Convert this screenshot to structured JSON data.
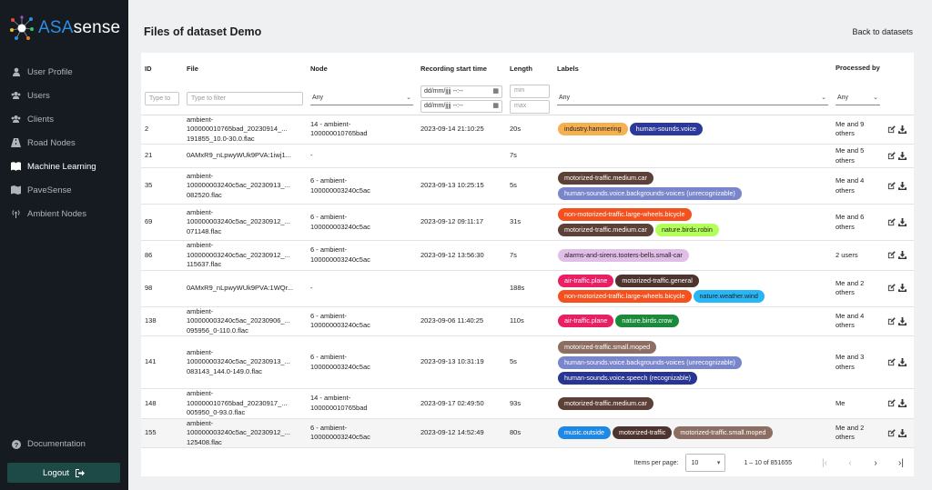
{
  "brand": {
    "name_a": "ASA",
    "name_b": "sense"
  },
  "sidebar": {
    "items": [
      {
        "label": "User Profile",
        "icon": "user-icon",
        "active": false
      },
      {
        "label": "Users",
        "icon": "users-icon",
        "active": false
      },
      {
        "label": "Clients",
        "icon": "clients-icon",
        "active": false
      },
      {
        "label": "Road Nodes",
        "icon": "road-icon",
        "active": false
      },
      {
        "label": "Machine Learning",
        "icon": "book-icon",
        "active": true
      },
      {
        "label": "PaveSense",
        "icon": "map-icon",
        "active": false
      },
      {
        "label": "Ambient Nodes",
        "icon": "broadcast-icon",
        "active": false
      }
    ],
    "documentation": "Documentation",
    "logout": "Logout"
  },
  "page": {
    "title": "Files of dataset Demo",
    "back": "Back to datasets"
  },
  "table": {
    "headers": {
      "id": "ID",
      "file": "File",
      "node": "Node",
      "start": "Recording start time",
      "length": "Length",
      "labels": "Labels",
      "processed": "Processed by"
    },
    "filters": {
      "id_placeholder": "Type to",
      "file_placeholder": "Type to filter",
      "node_value": "Any",
      "date_from": "dd/mm/jjjj --:--",
      "date_to": "dd/mm/jjjj --:--",
      "min_placeholder": "min",
      "max_placeholder": "max",
      "labels_value": "Any",
      "processed_value": "Any"
    },
    "rows": [
      {
        "id": "2",
        "file": [
          "ambient-",
          "100000010765bad_20230914_...",
          "191855_10.0-30.0.flac"
        ],
        "node": [
          "14 - ambient-",
          "100000010765bad"
        ],
        "start": "2023-09-14 21:10:25",
        "length": "20s",
        "labels": [
          [
            {
              "t": "industry.hammering",
              "c": "#f5b04f",
              "f": "#222"
            },
            {
              "t": "human-sounds.voice",
              "c": "#2b3a9a",
              "f": "#fff"
            }
          ]
        ],
        "processed": [
          "Me and 9",
          "others"
        ]
      },
      {
        "id": "21",
        "file": [
          "0AMxR9_nLpwyWUk9PVA:1iwj1..."
        ],
        "node": [
          "-"
        ],
        "start": "",
        "length": "7s",
        "labels": [],
        "processed": [
          "Me and 5",
          "others"
        ]
      },
      {
        "id": "35",
        "file": [
          "ambient-",
          "100000003240c5ac_20230913_...",
          "082520.flac"
        ],
        "node": [
          "6 - ambient-",
          "100000003240c5ac"
        ],
        "start": "2023-09-13 10:25:15",
        "length": "5s",
        "labels": [
          [
            {
              "t": "motorized-traffic.medium.car",
              "c": "#5d4037",
              "f": "#fff"
            }
          ],
          [
            {
              "t": "human-sounds.voice.backgrounds-voices (unrecognizable)",
              "c": "#7986cb",
              "f": "#fff"
            }
          ]
        ],
        "processed": [
          "Me and 4",
          "others"
        ]
      },
      {
        "id": "69",
        "file": [
          "ambient-",
          "100000003240c5ac_20230912_...",
          "071148.flac"
        ],
        "node": [
          "6 - ambient-",
          "100000003240c5ac"
        ],
        "start": "2023-09-12 09:11:17",
        "length": "31s",
        "labels": [
          [
            {
              "t": "non-motorized-traffic.large-wheels.bicycle",
              "c": "#f4511e",
              "f": "#fff"
            }
          ],
          [
            {
              "t": "motorized-traffic.medium.car",
              "c": "#5d4037",
              "f": "#fff"
            },
            {
              "t": "nature.birds.robin",
              "c": "#b2ff59",
              "f": "#222"
            }
          ]
        ],
        "processed": [
          "Me and 6",
          "others"
        ]
      },
      {
        "id": "86",
        "file": [
          "ambient-",
          "100000003240c5ac_20230912_...",
          "115637.flac"
        ],
        "node": [
          "6 - ambient-",
          "100000003240c5ac"
        ],
        "start": "2023-09-12 13:56:30",
        "length": "7s",
        "labels": [
          [
            {
              "t": "alarms-and-sirens.tooters-bells.small-car",
              "c": "#e1bee7",
              "f": "#222"
            }
          ]
        ],
        "processed": [
          "2 users"
        ]
      },
      {
        "id": "98",
        "file": [
          "0AMxR9_nLpwyWUk9PVA:1WQr..."
        ],
        "node": [
          "-"
        ],
        "start": "",
        "length": "188s",
        "labels": [
          [
            {
              "t": "air-traffic.plane",
              "c": "#e91e63",
              "f": "#fff"
            },
            {
              "t": "motorized-traffic.general",
              "c": "#4e342e",
              "f": "#fff"
            }
          ],
          [
            {
              "t": "non-motorized-traffic.large-wheels.bicycle",
              "c": "#f4511e",
              "f": "#fff"
            },
            {
              "t": "nature.weather.wind",
              "c": "#29b6f6",
              "f": "#222"
            }
          ]
        ],
        "processed": [
          "Me and 2",
          "others"
        ]
      },
      {
        "id": "138",
        "file": [
          "ambient-",
          "100000003240c5ac_20230906_...",
          "095956_0-110.0.flac"
        ],
        "node": [
          "6 - ambient-",
          "100000003240c5ac"
        ],
        "start": "2023-09-06 11:40:25",
        "length": "110s",
        "labels": [
          [
            {
              "t": "air-traffic.plane",
              "c": "#e91e63",
              "f": "#fff"
            },
            {
              "t": "nature.birds.crow",
              "c": "#1b8a3a",
              "f": "#fff"
            }
          ]
        ],
        "processed": [
          "Me and 4",
          "others"
        ]
      },
      {
        "id": "141",
        "file": [
          "ambient-",
          "100000003240c5ac_20230913_...",
          "083143_144.0-149.0.flac"
        ],
        "node": [
          "6 - ambient-",
          "100000003240c5ac"
        ],
        "start": "2023-09-13 10:31:19",
        "length": "5s",
        "labels": [
          [
            {
              "t": "motorized-traffic.small.moped",
              "c": "#8d6e63",
              "f": "#fff"
            }
          ],
          [
            {
              "t": "human-sounds.voice.backgrounds-voices (unrecognizable)",
              "c": "#7986cb",
              "f": "#fff"
            }
          ],
          [
            {
              "t": "human-sounds.voice.speech (recognizable)",
              "c": "#283593",
              "f": "#fff"
            }
          ]
        ],
        "processed": [
          "Me and 3",
          "others"
        ]
      },
      {
        "id": "148",
        "file": [
          "ambient-",
          "100000010765bad_20230917_...",
          "005950_0-93.0.flac"
        ],
        "node": [
          "14 - ambient-",
          "100000010765bad"
        ],
        "start": "2023-09-17 02:49:50",
        "length": "93s",
        "labels": [
          [
            {
              "t": "motorized-traffic.medium.car",
              "c": "#5d4037",
              "f": "#fff"
            }
          ]
        ],
        "processed": [
          "Me"
        ]
      },
      {
        "id": "155",
        "file": [
          "ambient-",
          "100000003240c5ac_20230912_...",
          "125408.flac"
        ],
        "node": [
          "6 - ambient-",
          "100000003240c5ac"
        ],
        "start": "2023-09-12 14:52:49",
        "length": "80s",
        "labels": [
          [
            {
              "t": "music.outside",
              "c": "#1e88e5",
              "f": "#fff"
            },
            {
              "t": "motorized-traffic",
              "c": "#4e342e",
              "f": "#fff"
            },
            {
              "t": "motorized-traffic.small.moped",
              "c": "#8d6e63",
              "f": "#fff"
            }
          ]
        ],
        "processed": [
          "Me and 2",
          "others"
        ]
      }
    ]
  },
  "pagination": {
    "label": "Items per page:",
    "per_page": "10",
    "range": "1 – 10 of 851655"
  }
}
